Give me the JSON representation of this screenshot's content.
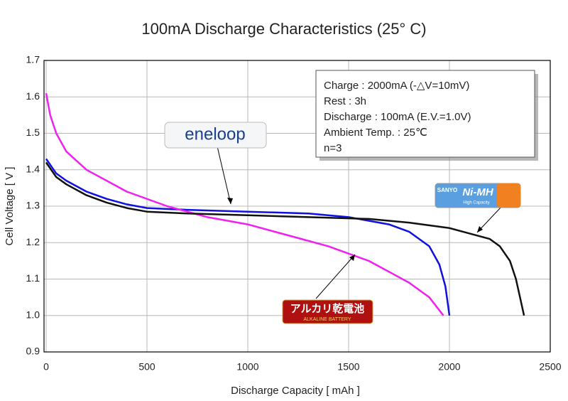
{
  "chart_data": {
    "type": "line",
    "title": "100mA Discharge Characteristics (25° C)",
    "x_label": "Discharge Capacity [ mAh ]",
    "y_label": "Cell Voltage [ V ]",
    "xlim": [
      0,
      2500
    ],
    "ylim": [
      0.9,
      1.7
    ],
    "xticks": [
      0,
      500,
      1000,
      1500,
      2000,
      2500
    ],
    "yticks": [
      0.9,
      {
        "value": 1,
        "label": "1.0"
      },
      1.1,
      1.2,
      1.3,
      1.4,
      1.5,
      1.6,
      1.7
    ],
    "grid": true,
    "series": [
      {
        "name": "eneloop",
        "color": "#1010e0",
        "x": [
          0,
          50,
          100,
          200,
          300,
          400,
          500,
          700,
          1000,
          1300,
          1500,
          1700,
          1800,
          1900,
          1950,
          1980,
          1995,
          2000
        ],
        "values": [
          1.43,
          1.39,
          1.37,
          1.34,
          1.32,
          1.305,
          1.295,
          1.29,
          1.285,
          1.28,
          1.27,
          1.25,
          1.23,
          1.19,
          1.14,
          1.08,
          1.02,
          1.0
        ]
      },
      {
        "name": "アルカリ乾電池",
        "color": "#f020f0",
        "x": [
          0,
          20,
          50,
          100,
          200,
          400,
          600,
          800,
          1000,
          1200,
          1400,
          1600,
          1700,
          1800,
          1900,
          1970
        ],
        "values": [
          1.61,
          1.55,
          1.5,
          1.45,
          1.4,
          1.34,
          1.3,
          1.27,
          1.25,
          1.22,
          1.19,
          1.15,
          1.12,
          1.09,
          1.05,
          1.0
        ]
      },
      {
        "name": "Ni-MH",
        "color": "#111111",
        "x": [
          0,
          50,
          100,
          200,
          300,
          400,
          500,
          700,
          1000,
          1300,
          1600,
          1800,
          2000,
          2100,
          2200,
          2250,
          2300,
          2330,
          2350,
          2370
        ],
        "values": [
          1.42,
          1.38,
          1.36,
          1.33,
          1.31,
          1.295,
          1.285,
          1.28,
          1.275,
          1.27,
          1.265,
          1.255,
          1.24,
          1.225,
          1.21,
          1.19,
          1.15,
          1.1,
          1.05,
          1.0
        ]
      }
    ],
    "info_box": [
      "Charge : 2000mA (-△V=10mV)",
      "Rest : 3h",
      "Discharge : 100mA (E.V.=1.0V)",
      "Ambient Temp. : 25℃",
      "n=3"
    ],
    "battery_texts": {
      "alkaline_sub": "ALKALINE BATTERY",
      "maker": "SANYO",
      "grade": "High Capacity"
    }
  }
}
